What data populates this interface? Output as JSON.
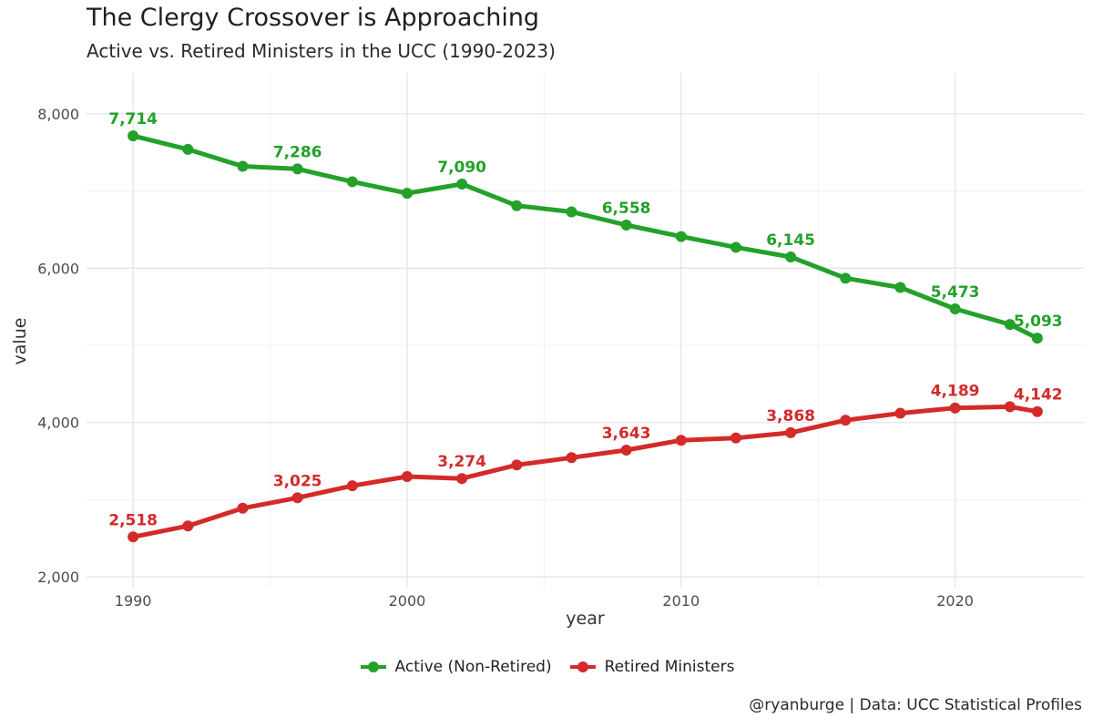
{
  "header": {
    "title": "The Clergy Crossover is Approaching",
    "subtitle": "Active vs. Retired Ministers in the UCC (1990-2023)",
    "caption": "@ryanburge | Data: UCC Statistical Profiles"
  },
  "chart_data": {
    "type": "line",
    "xlabel": "year",
    "ylabel": "value",
    "xlim": [
      1988.3,
      2024.7
    ],
    "ylim": [
      1860,
      8530
    ],
    "x_ticks": [
      1990,
      2000,
      2010,
      2020
    ],
    "y_ticks": [
      2000,
      4000,
      6000,
      8000
    ],
    "y_tick_labels": [
      "2,000",
      "4,000",
      "6,000",
      "8,000"
    ],
    "grid": true,
    "legend_position": "bottom",
    "series": [
      {
        "name": "Active (Non-Retired)",
        "color": "#23a12a",
        "x": [
          1990,
          1992,
          1994,
          1996,
          1998,
          2000,
          2002,
          2004,
          2006,
          2008,
          2010,
          2012,
          2014,
          2016,
          2018,
          2020,
          2022,
          2023
        ],
        "values": [
          7714,
          7540,
          7320,
          7286,
          7120,
          6970,
          7090,
          6810,
          6730,
          6558,
          6410,
          6270,
          6145,
          5870,
          5750,
          5473,
          5270,
          5093
        ],
        "labels": [
          {
            "x": 1990,
            "text": "7,714"
          },
          {
            "x": 1996,
            "text": "7,286"
          },
          {
            "x": 2002,
            "text": "7,090"
          },
          {
            "x": 2008,
            "text": "6,558"
          },
          {
            "x": 2014,
            "text": "6,145"
          },
          {
            "x": 2020,
            "text": "5,473"
          },
          {
            "x": 2023,
            "text": "5,093"
          }
        ]
      },
      {
        "name": "Retired Ministers",
        "color": "#d42a2a",
        "x": [
          1990,
          1992,
          1994,
          1996,
          1998,
          2000,
          2002,
          2004,
          2006,
          2008,
          2010,
          2012,
          2014,
          2016,
          2018,
          2020,
          2022,
          2023
        ],
        "values": [
          2518,
          2660,
          2890,
          3025,
          3180,
          3300,
          3274,
          3450,
          3545,
          3643,
          3770,
          3800,
          3868,
          4030,
          4120,
          4189,
          4205,
          4142
        ],
        "labels": [
          {
            "x": 1990,
            "text": "2,518"
          },
          {
            "x": 1996,
            "text": "3,025"
          },
          {
            "x": 2002,
            "text": "3,274"
          },
          {
            "x": 2008,
            "text": "3,643"
          },
          {
            "x": 2014,
            "text": "3,868"
          },
          {
            "x": 2020,
            "text": "4,189"
          },
          {
            "x": 2023,
            "text": "4,142"
          }
        ]
      }
    ]
  }
}
